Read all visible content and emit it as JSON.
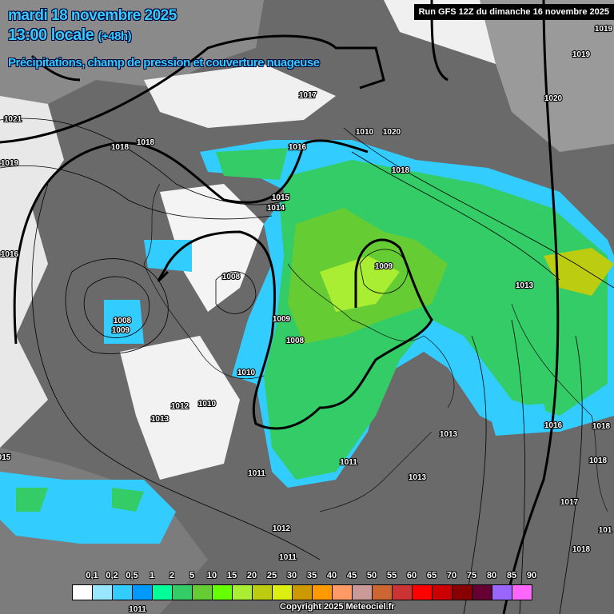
{
  "header": {
    "date": "mardi 18 novembre 2025",
    "time": "13:00 locale",
    "lead": "(+48h)",
    "subtitle": "Précipitations, champ de pression et couverture nuageuse",
    "run": "Run GFS 12Z du dimanche 16 novembre 2025"
  },
  "map": {
    "pressure_labels": [
      "1021",
      "1019",
      "1016",
      "015",
      "1018",
      "1018",
      "1017",
      "1016",
      "1010",
      "1020",
      "1018",
      "1015",
      "1014",
      "1008",
      "1009",
      "1008",
      "1009",
      "1009",
      "1008",
      "1010",
      "1012",
      "1010",
      "1013",
      "1013",
      "1011",
      "1011",
      "1013",
      "1012",
      "1011",
      "1011",
      "1013",
      "1016",
      "1018",
      "1018",
      "1017",
      "1018",
      "1019",
      "1019",
      "1020",
      "101"
    ]
  },
  "legend": {
    "unit_ticks": [
      "0,1",
      "0,2",
      "0,5",
      "1",
      "2",
      "5",
      "10",
      "15",
      "20",
      "25",
      "30",
      "35",
      "40",
      "45",
      "50",
      "55",
      "60",
      "65",
      "70",
      "75",
      "80",
      "85",
      "90"
    ],
    "colors": [
      "#ffffff",
      "#99e6ff",
      "#33ccff",
      "#0099ff",
      "#00ff99",
      "#33cc66",
      "#66cc33",
      "#66ff00",
      "#aaee33",
      "#bbcc11",
      "#ddee11",
      "#cc9900",
      "#ff9900",
      "#ff9966",
      "#cc9999",
      "#cc6633",
      "#cc3333",
      "#ff0000",
      "#cc0000",
      "#880000",
      "#660033",
      "#9966ff",
      "#ff66ff"
    ]
  },
  "copyright": "Copyright 2025 Meteociel.fr"
}
